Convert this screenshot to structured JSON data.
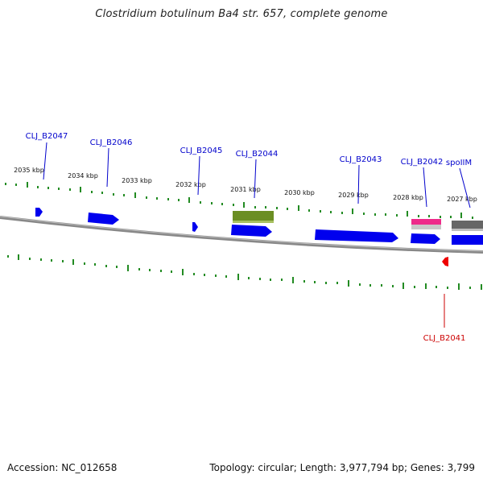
{
  "title": "Clostridium botulinum Ba4 str. 657, complete genome",
  "footer": {
    "accession": "Accession: NC_012658",
    "summary": "Topology: circular; Length: 3,977,794 bp; Genes: 3,799"
  },
  "colors": {
    "forward_gene": "#0000ee",
    "reverse_gene": "#ee0000",
    "rna_olive": "#6b8e23",
    "rna_pink": "#ee2a8a",
    "grey_feature": "#666666",
    "tick": "#228b22",
    "backbone": "#777777"
  },
  "kbp_labels": [
    "2035 kbp",
    "2034 kbp",
    "2033 kbp",
    "2032 kbp",
    "2031 kbp",
    "2030 kbp",
    "2029 kbp",
    "2028 kbp",
    "2027 kbp"
  ],
  "gene_labels": [
    "CLJ_B2047",
    "CLJ_B2046",
    "CLJ_B2045",
    "CLJ_B2044",
    "CLJ_B2043",
    "CLJ_B2042",
    "spoIIM",
    "CLJ_B2041"
  ]
}
